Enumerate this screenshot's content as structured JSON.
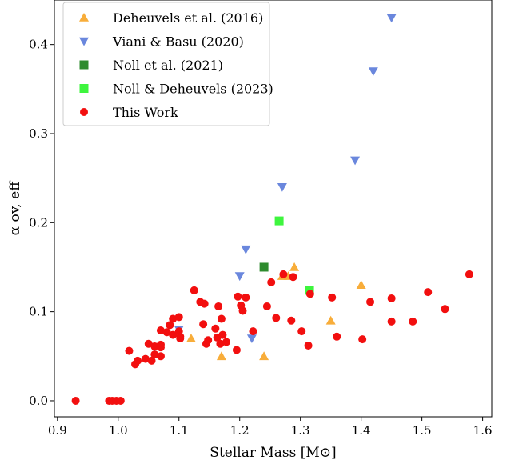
{
  "chart_data": {
    "type": "scatter",
    "xlabel": "Stellar Mass [M⊙]",
    "ylabel": "α ov, eff",
    "xlim": [
      0.895,
      1.615
    ],
    "ylim": [
      -0.018,
      0.45
    ],
    "xticks": [
      0.9,
      1.0,
      1.1,
      1.2,
      1.3,
      1.4,
      1.5,
      1.6
    ],
    "yticks": [
      0.0,
      0.1,
      0.2,
      0.3,
      0.4
    ],
    "xtick_labels": [
      "0.9",
      "1.0",
      "1.1",
      "1.2",
      "1.3",
      "1.4",
      "1.5",
      "1.6"
    ],
    "ytick_labels": [
      "0.0",
      "0.1",
      "0.2",
      "0.3",
      "0.4"
    ],
    "grid": false,
    "legend_position": "top-left",
    "series": [
      {
        "name": "Deheuvels et al. (2016)",
        "marker": "triangle-up",
        "color": "#f8ad3a",
        "points": [
          [
            1.12,
            0.07
          ],
          [
            1.17,
            0.05
          ],
          [
            1.24,
            0.05
          ],
          [
            1.27,
            0.14
          ],
          [
            1.28,
            0.14
          ],
          [
            1.29,
            0.15
          ],
          [
            1.35,
            0.09
          ],
          [
            1.4,
            0.13
          ]
        ]
      },
      {
        "name": "Viani & Basu (2020)",
        "marker": "triangle-down",
        "color": "#6a87dd",
        "points": [
          [
            1.06,
            0.06
          ],
          [
            1.1,
            0.08
          ],
          [
            1.2,
            0.14
          ],
          [
            1.21,
            0.17
          ],
          [
            1.22,
            0.07
          ],
          [
            1.27,
            0.24
          ],
          [
            1.39,
            0.27
          ],
          [
            1.42,
            0.37
          ],
          [
            1.45,
            0.43
          ]
        ]
      },
      {
        "name": "Noll et al. (2021)",
        "marker": "square",
        "color": "#2e8b2e",
        "points": [
          [
            1.24,
            0.15
          ]
        ]
      },
      {
        "name": "Noll & Deheuvels (2023)",
        "marker": "square",
        "color": "#3ef53e",
        "points": [
          [
            1.265,
            0.202
          ],
          [
            1.315,
            0.124
          ]
        ]
      },
      {
        "name": "This Work",
        "marker": "circle",
        "color": "#f20f0f",
        "points": [
          [
            0.93,
            0.0
          ],
          [
            0.985,
            0.0
          ],
          [
            0.99,
            0.0
          ],
          [
            0.997,
            0.0
          ],
          [
            1.004,
            0.0
          ],
          [
            1.018,
            0.056
          ],
          [
            1.028,
            0.041
          ],
          [
            1.032,
            0.045
          ],
          [
            1.045,
            0.047
          ],
          [
            1.05,
            0.064
          ],
          [
            1.055,
            0.045
          ],
          [
            1.06,
            0.052
          ],
          [
            1.06,
            0.061
          ],
          [
            1.07,
            0.079
          ],
          [
            1.07,
            0.063
          ],
          [
            1.07,
            0.06
          ],
          [
            1.07,
            0.05
          ],
          [
            1.08,
            0.077
          ],
          [
            1.085,
            0.085
          ],
          [
            1.09,
            0.092
          ],
          [
            1.09,
            0.074
          ],
          [
            1.1,
            0.094
          ],
          [
            1.1,
            0.078
          ],
          [
            1.102,
            0.072
          ],
          [
            1.102,
            0.07
          ],
          [
            1.125,
            0.124
          ],
          [
            1.135,
            0.111
          ],
          [
            1.14,
            0.086
          ],
          [
            1.142,
            0.109
          ],
          [
            1.145,
            0.064
          ],
          [
            1.148,
            0.068
          ],
          [
            1.16,
            0.081
          ],
          [
            1.163,
            0.071
          ],
          [
            1.165,
            0.106
          ],
          [
            1.168,
            0.064
          ],
          [
            1.17,
            0.092
          ],
          [
            1.172,
            0.074
          ],
          [
            1.178,
            0.066
          ],
          [
            1.195,
            0.057
          ],
          [
            1.197,
            0.117
          ],
          [
            1.202,
            0.107
          ],
          [
            1.205,
            0.101
          ],
          [
            1.21,
            0.116
          ],
          [
            1.222,
            0.078
          ],
          [
            1.245,
            0.106
          ],
          [
            1.252,
            0.133
          ],
          [
            1.26,
            0.093
          ],
          [
            1.272,
            0.142
          ],
          [
            1.285,
            0.09
          ],
          [
            1.288,
            0.139
          ],
          [
            1.302,
            0.078
          ],
          [
            1.313,
            0.062
          ],
          [
            1.316,
            0.12
          ],
          [
            1.352,
            0.116
          ],
          [
            1.36,
            0.072
          ],
          [
            1.402,
            0.069
          ],
          [
            1.415,
            0.111
          ],
          [
            1.45,
            0.089
          ],
          [
            1.45,
            0.115
          ],
          [
            1.485,
            0.089
          ],
          [
            1.51,
            0.122
          ],
          [
            1.538,
            0.103
          ],
          [
            1.578,
            0.142
          ]
        ]
      }
    ]
  }
}
